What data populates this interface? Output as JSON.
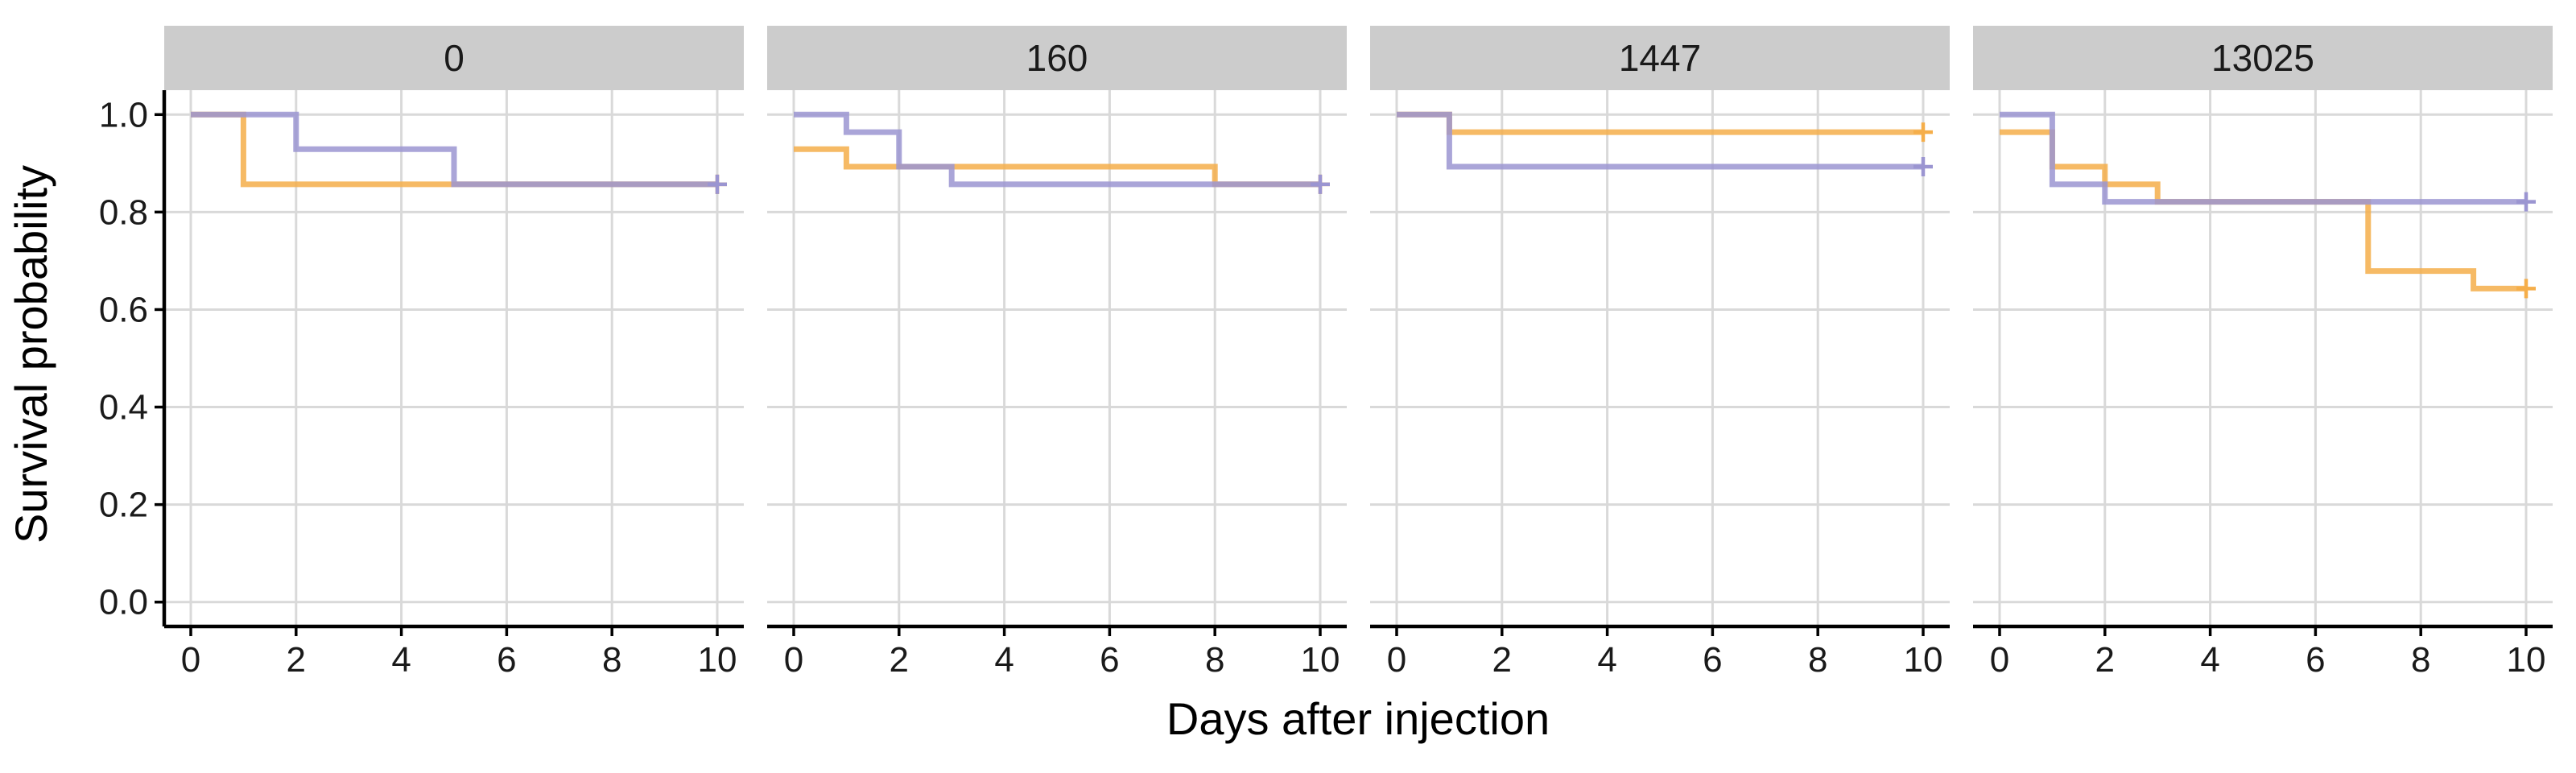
{
  "chart_data": {
    "type": "line",
    "subtype": "kaplan-meier step survival curves, faceted",
    "xlabel": "Days after injection",
    "ylabel": "Survival probability",
    "xlim": [
      0,
      10
    ],
    "ylim": [
      0,
      1
    ],
    "x_ticks": [
      0,
      2,
      4,
      6,
      8,
      10
    ],
    "x_tick_labels": [
      "0",
      "2",
      "4",
      "6",
      "8",
      "10"
    ],
    "y_ticks": [
      0,
      0.2,
      0.4,
      0.6,
      0.8,
      1.0
    ],
    "y_tick_labels": [
      "0.0",
      "0.2",
      "0.4",
      "0.6",
      "0.8",
      "1.0"
    ],
    "grid": true,
    "legend": "none",
    "series_colors": [
      "#f5ae4a",
      "#9b95d1"
    ],
    "panels": [
      {
        "label": "0",
        "series": [
          {
            "color": "#f5ae4a",
            "steps": [
              [
                0,
                1.0
              ],
              [
                1,
                0.857
              ]
            ],
            "end_x": 10,
            "censor": [
              [
                10,
                0.857
              ]
            ]
          },
          {
            "color": "#9b95d1",
            "steps": [
              [
                0,
                1.0
              ],
              [
                2,
                0.929
              ],
              [
                5,
                0.857
              ]
            ],
            "end_x": 10,
            "censor": [
              [
                10,
                0.857
              ]
            ]
          }
        ]
      },
      {
        "label": "160",
        "series": [
          {
            "color": "#f5ae4a",
            "steps": [
              [
                0,
                0.929
              ],
              [
                1,
                0.893
              ],
              [
                8,
                0.857
              ]
            ],
            "end_x": 10,
            "censor": [
              [
                10,
                0.857
              ]
            ]
          },
          {
            "color": "#9b95d1",
            "steps": [
              [
                0,
                1.0
              ],
              [
                1,
                0.964
              ],
              [
                2,
                0.893
              ],
              [
                3,
                0.857
              ]
            ],
            "end_x": 10,
            "censor": [
              [
                10,
                0.857
              ]
            ]
          }
        ]
      },
      {
        "label": "1447",
        "series": [
          {
            "color": "#f5ae4a",
            "steps": [
              [
                0,
                1.0
              ],
              [
                1,
                0.964
              ]
            ],
            "end_x": 10,
            "censor": [
              [
                10,
                0.964
              ]
            ]
          },
          {
            "color": "#9b95d1",
            "steps": [
              [
                0,
                1.0
              ],
              [
                1,
                0.893
              ]
            ],
            "end_x": 10,
            "censor": [
              [
                10,
                0.893
              ]
            ]
          }
        ]
      },
      {
        "label": "13025",
        "series": [
          {
            "color": "#f5ae4a",
            "steps": [
              [
                0,
                0.964
              ],
              [
                1,
                0.893
              ],
              [
                2,
                0.857
              ],
              [
                3,
                0.821
              ],
              [
                7,
                0.679
              ],
              [
                9,
                0.643
              ]
            ],
            "end_x": 10,
            "censor": [
              [
                10,
                0.643
              ]
            ]
          },
          {
            "color": "#9b95d1",
            "steps": [
              [
                0,
                1.0
              ],
              [
                1,
                0.857
              ],
              [
                2,
                0.821
              ]
            ],
            "end_x": 10,
            "censor": [
              [
                10,
                0.821
              ]
            ]
          }
        ]
      }
    ]
  }
}
